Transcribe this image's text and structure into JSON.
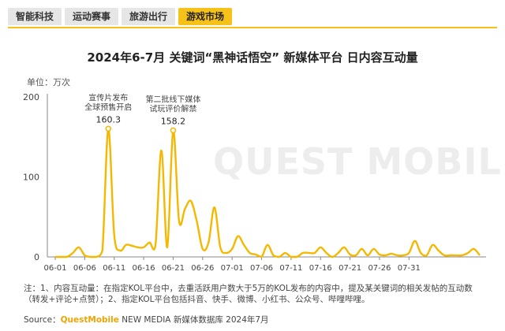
{
  "tabs": [
    {
      "label": "智能科技"
    },
    {
      "label": "运动赛事"
    },
    {
      "label": "旅游出行"
    },
    {
      "label": "游戏市场"
    }
  ],
  "watermark": "QUEST MOBILE",
  "notes": {
    "line1": "注：1、内容互动量：在指定KOL平台中，去重活跃用户数大于5万的KOL发布的内容中，提及某关键词的相关发帖的互动数",
    "line2": "（转发+评论+点赞）；2、指定KOL平台包括抖音、快手、微博、小红书、公众号、哔哩哔哩。"
  },
  "source": {
    "prefix": "Source：",
    "brand": "QuestMobile",
    "suffix": " NEW MEDIA 新媒体数据库 2024年7月"
  },
  "colors": {
    "accent": "#f6c21a",
    "line": "#f5b800"
  },
  "chart_data": {
    "type": "line",
    "title": "2024年6-7月 关键词“黑神话悟空” 新媒体平台 日内容互动量",
    "ylabel": "单位：万次",
    "ylim": [
      0,
      200
    ],
    "yticks": [
      0,
      100,
      200
    ],
    "xticks": [
      "06-01",
      "06-06",
      "06-11",
      "06-16",
      "06-21",
      "06-26",
      "07-01",
      "07-06",
      "07-11",
      "07-16",
      "07-21",
      "07-26",
      "07-31"
    ],
    "grid": false,
    "series": [
      {
        "values": [
          0,
          0,
          0,
          5,
          12,
          2,
          0,
          0,
          8,
          160.3,
          28,
          8,
          15,
          14,
          12,
          12,
          18,
          15,
          133,
          12,
          158.2,
          45,
          60,
          70,
          45,
          10,
          18,
          62,
          12,
          5,
          10,
          26,
          15,
          5,
          3,
          0,
          15,
          2,
          0,
          5,
          0,
          0,
          5,
          5,
          5,
          12,
          5,
          0,
          5,
          12,
          3,
          2,
          10,
          2,
          10,
          3,
          2,
          4,
          2,
          2,
          5,
          20,
          5,
          2,
          15,
          8,
          2,
          2,
          2,
          2,
          5,
          10,
          2
        ]
      }
    ],
    "annotations": [
      {
        "index": 9,
        "value_label": "160.3",
        "text_lines": [
          "宣传片发布",
          "全球预售开启"
        ]
      },
      {
        "index": 20,
        "value_label": "158.2",
        "text_lines": [
          "第二批线下媒体",
          "试玩评价解禁"
        ]
      }
    ]
  }
}
